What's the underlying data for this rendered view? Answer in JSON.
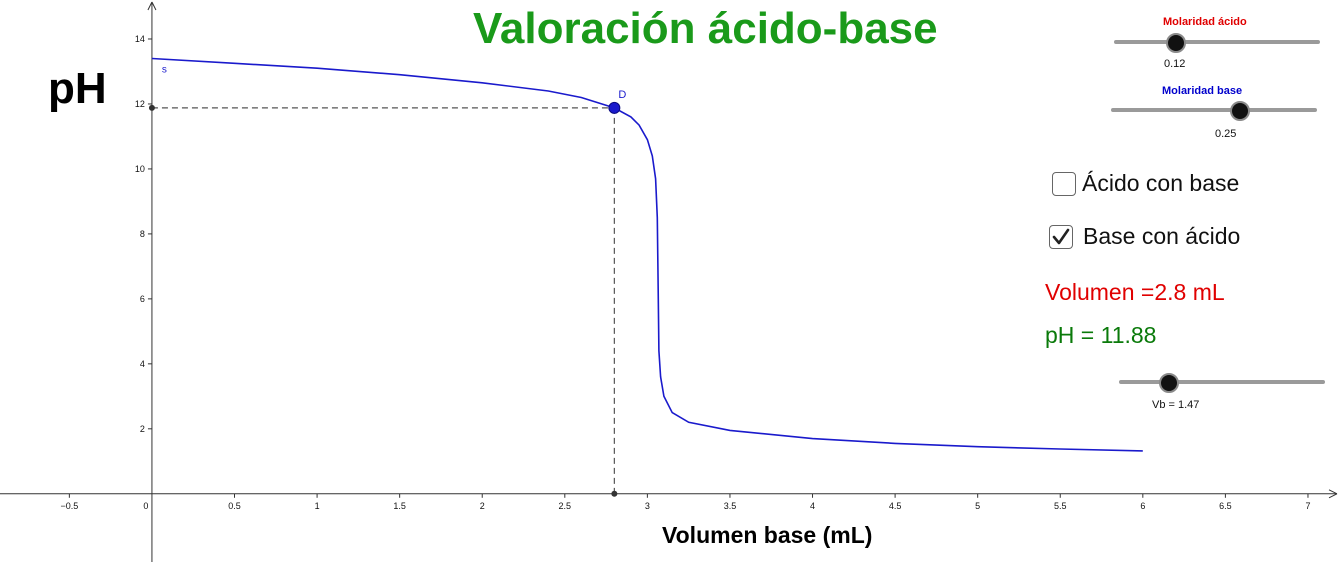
{
  "title": "Valoración  ácido-base",
  "y_axis_label": "pH",
  "x_axis_label": "Volumen base (mL)",
  "sliders": {
    "molaridad_acido": {
      "label": "Molaridad ácido",
      "value": "0.12",
      "color": "#e00000",
      "fraction": 0.3
    },
    "molaridad_base": {
      "label": "Molaridad base",
      "value": "0.25",
      "color": "#0000cc",
      "fraction": 0.625
    },
    "vb": {
      "label": "Vb = 1.47",
      "fraction": 0.245
    }
  },
  "checkboxes": [
    {
      "label": "Ácido con base",
      "checked": false
    },
    {
      "label": "Base con ácido",
      "checked": true
    }
  ],
  "readouts": {
    "volumen": "Volumen =2.8 mL",
    "volumen_color": "#e00000",
    "ph": "pH = 11.88",
    "ph_color": "#0a7a0a"
  },
  "chart_data": {
    "type": "line",
    "xlim": [
      -0.92,
      7.2
    ],
    "ylim": [
      -2.1,
      15.2
    ],
    "x_ticks": [
      "−0.5",
      "0",
      "0.5",
      "1",
      "1.5",
      "2",
      "2.5",
      "3",
      "3.5",
      "4",
      "4.5",
      "5",
      "5.5",
      "6",
      "6.5",
      "7"
    ],
    "x_tick_values": [
      -0.5,
      0,
      0.5,
      1,
      1.5,
      2,
      2.5,
      3,
      3.5,
      4,
      4.5,
      5,
      5.5,
      6,
      6.5,
      7
    ],
    "y_ticks": [
      "2",
      "4",
      "6",
      "8",
      "10",
      "12",
      "14"
    ],
    "y_tick_values": [
      2,
      4,
      6,
      8,
      10,
      12,
      14
    ],
    "curve_label": "s",
    "curve_color": "#1a1acc",
    "curve": {
      "x": [
        0,
        0.5,
        1,
        1.5,
        2,
        2.4,
        2.6,
        2.8,
        2.9,
        2.95,
        3.0,
        3.03,
        3.05,
        3.06,
        3.065,
        3.07,
        3.08,
        3.1,
        3.15,
        3.25,
        3.5,
        4,
        4.5,
        5,
        5.5,
        6
      ],
      "y": [
        13.4,
        13.25,
        13.1,
        12.9,
        12.65,
        12.4,
        12.2,
        11.88,
        11.6,
        11.35,
        10.9,
        10.4,
        9.7,
        8.5,
        6.5,
        4.4,
        3.6,
        3.0,
        2.5,
        2.2,
        1.95,
        1.7,
        1.55,
        1.45,
        1.38,
        1.32
      ]
    },
    "point": {
      "label": "D",
      "x": 2.8,
      "y": 11.88,
      "color": "#1a1acc"
    }
  }
}
